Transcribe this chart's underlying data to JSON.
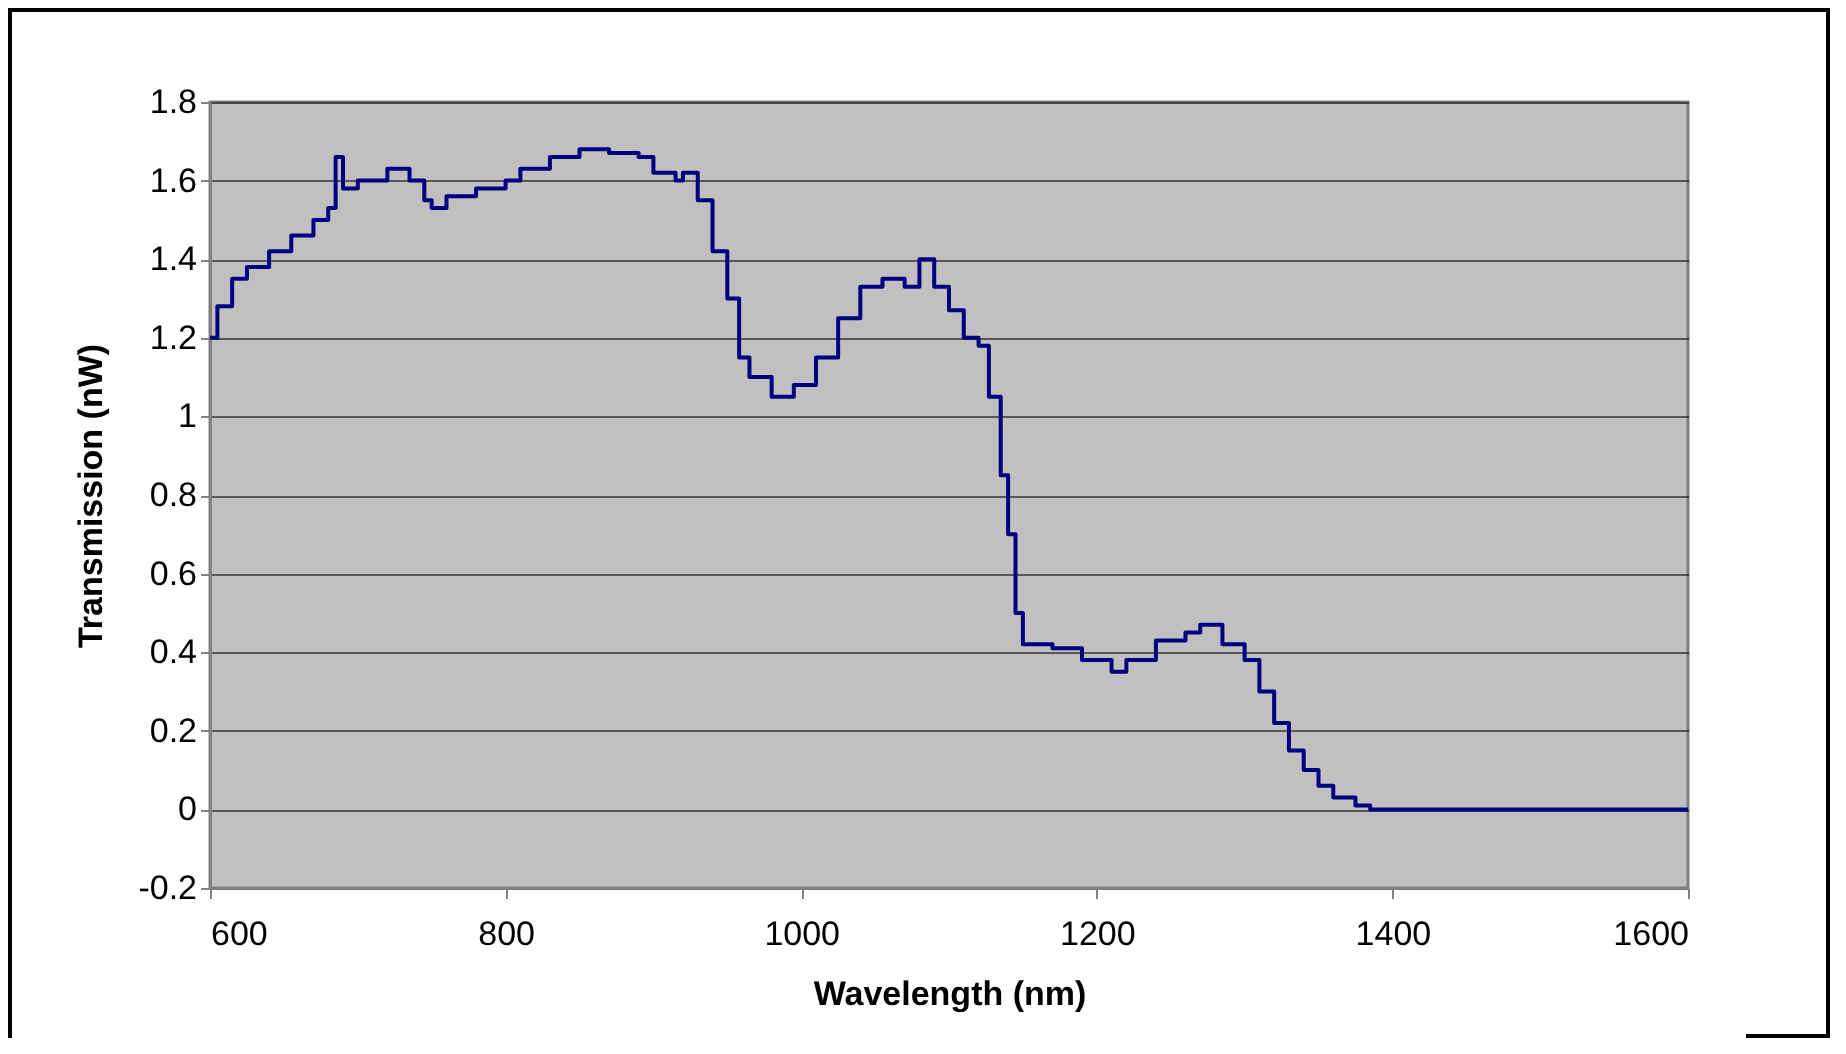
{
  "chart_data": {
    "type": "step",
    "xlabel": "Wavelength (nm)",
    "ylabel": "Transmission (nW)",
    "x": [
      600,
      605,
      615,
      625,
      640,
      655,
      670,
      680,
      685,
      690,
      700,
      720,
      735,
      745,
      750,
      760,
      780,
      800,
      810,
      830,
      850,
      870,
      890,
      900,
      915,
      920,
      930,
      940,
      950,
      958,
      965,
      980,
      995,
      1010,
      1025,
      1040,
      1055,
      1070,
      1080,
      1090,
      1100,
      1110,
      1120,
      1127,
      1135,
      1140,
      1145,
      1150,
      1170,
      1190,
      1210,
      1220,
      1240,
      1260,
      1270,
      1285,
      1300,
      1310,
      1320,
      1330,
      1340,
      1350,
      1360,
      1375,
      1385,
      1600
    ],
    "series": [
      {
        "color": "#000080",
        "values": [
          1.2,
          1.28,
          1.35,
          1.38,
          1.42,
          1.46,
          1.5,
          1.53,
          1.66,
          1.58,
          1.6,
          1.63,
          1.6,
          1.55,
          1.53,
          1.56,
          1.58,
          1.6,
          1.63,
          1.66,
          1.68,
          1.67,
          1.66,
          1.62,
          1.6,
          1.62,
          1.55,
          1.42,
          1.3,
          1.15,
          1.1,
          1.05,
          1.08,
          1.15,
          1.25,
          1.33,
          1.35,
          1.33,
          1.4,
          1.33,
          1.27,
          1.2,
          1.18,
          1.05,
          0.85,
          0.7,
          0.5,
          0.42,
          0.41,
          0.38,
          0.35,
          0.38,
          0.43,
          0.45,
          0.47,
          0.42,
          0.38,
          0.3,
          0.22,
          0.15,
          0.1,
          0.06,
          0.03,
          0.01,
          0,
          0
        ]
      }
    ],
    "xlim": [
      600,
      1600
    ],
    "xticks": [
      600,
      800,
      1000,
      1200,
      1400,
      1600
    ],
    "ylim": [
      -0.2,
      1.8
    ],
    "yticks": [
      -0.2,
      0,
      0.2,
      0.4,
      0.6,
      0.8,
      1,
      1.2,
      1.4,
      1.6,
      1.8
    ],
    "grid": "y"
  }
}
